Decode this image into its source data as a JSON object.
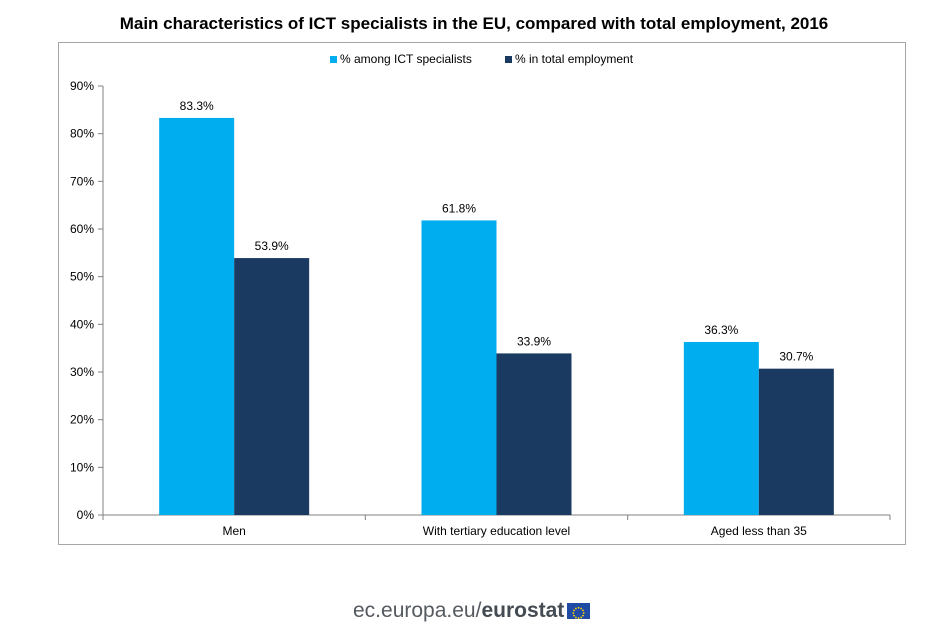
{
  "chart_data": {
    "type": "bar",
    "title": "Main characteristics of ICT specialists in the EU, compared with total employment, 2016",
    "categories": [
      "Men",
      "With tertiary education level",
      "Aged less than 35"
    ],
    "series": [
      {
        "name": "% among ICT specialists",
        "values": [
          83.3,
          61.8,
          36.3
        ],
        "color": "#00adef",
        "labels": [
          "83.3%",
          "61.8%",
          "36.3%"
        ]
      },
      {
        "name": "% in total employment",
        "values": [
          53.9,
          33.9,
          30.7
        ],
        "color": "#1b3a62",
        "labels": [
          "53.9%",
          "33.9%",
          "30.7%"
        ]
      }
    ],
    "ylim": [
      0,
      90
    ],
    "yticks": [
      0,
      10,
      20,
      30,
      40,
      50,
      60,
      70,
      80,
      90
    ],
    "ytick_labels": [
      "0%",
      "10%",
      "20%",
      "30%",
      "40%",
      "50%",
      "60%",
      "70%",
      "80%",
      "90%"
    ],
    "xlabel": "",
    "ylabel": "",
    "grid": false,
    "legend_position": "top-center"
  },
  "footer": {
    "site": "ec.europa.eu/",
    "brand": "eurostat",
    "flag_icon": "eu-flag-icon"
  }
}
